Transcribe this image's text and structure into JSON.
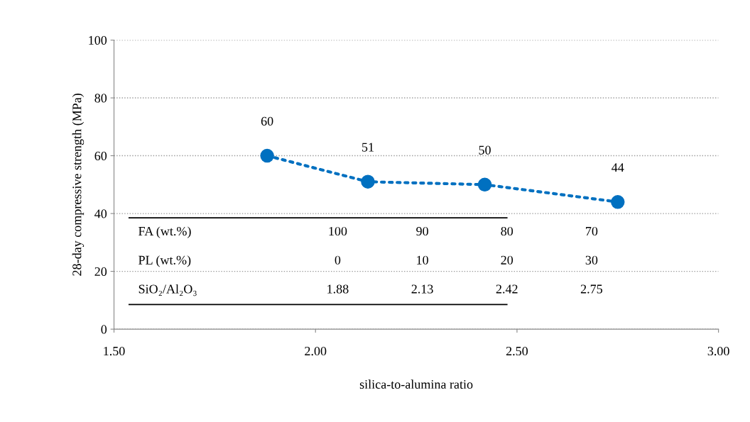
{
  "chart_data": {
    "type": "line",
    "xlabel": "silica-to-alumina ratio",
    "ylabel": "28-day compressive strength (MPa)",
    "x": [
      1.88,
      2.13,
      2.42,
      2.75
    ],
    "series": [
      {
        "color": "#0070c0",
        "values": [
          60,
          51,
          50,
          44
        ]
      }
    ],
    "marker": "circle",
    "line_style": "dotted",
    "data_labels": true,
    "xlim": [
      1.5,
      3.0
    ],
    "xticks": [
      {
        "value": 1.5,
        "label": "1.50"
      },
      {
        "value": 2.0,
        "label": "2.00"
      },
      {
        "value": 2.5,
        "label": "2.50"
      },
      {
        "value": 3.0,
        "label": "3.00"
      }
    ],
    "ylim": [
      0,
      100
    ],
    "yticks": [
      0,
      20,
      40,
      60,
      80,
      100
    ],
    "grid": "y",
    "legend": false,
    "annotations": [
      "FA (wt.%)",
      "100",
      "90",
      "80",
      "70",
      "PL (wt.%)",
      "0",
      "10",
      "20",
      "30",
      "SiO₂/Al₂O₃",
      "1.88",
      "2.13",
      "2.42",
      "2.75"
    ]
  }
}
